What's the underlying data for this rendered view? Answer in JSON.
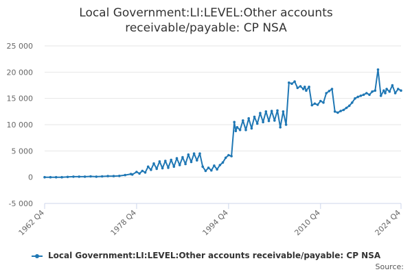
{
  "chart_data": {
    "type": "line",
    "title_line1": "Local Government:LI:LEVEL:Other accounts",
    "title_line2": "receivable/payable: CP NSA",
    "xlabel": "",
    "ylabel": "",
    "ylim": [
      -5000,
      25000
    ],
    "y_ticks": [
      {
        "value": 25000,
        "label": "25 000"
      },
      {
        "value": 20000,
        "label": "20 000"
      },
      {
        "value": 15000,
        "label": "15 000"
      },
      {
        "value": 10000,
        "label": "10 000"
      },
      {
        "value": 5000,
        "label": "5 000"
      },
      {
        "value": 0,
        "label": "0"
      },
      {
        "value": -5000,
        "label": "-5 000"
      }
    ],
    "x_ticks": [
      "1962 Q4",
      "1978 Q4",
      "1994 Q4",
      "2010 Q4",
      "2024 Q4"
    ],
    "grid": true,
    "legend_position": "bottom",
    "color": "#1f77b4",
    "series": [
      {
        "name": "Local Government:LI:LEVEL:Other accounts receivable/payable: CP NSA",
        "x": [
          "1962 Q4",
          "1963 Q4",
          "1964 Q4",
          "1965 Q4",
          "1966 Q4",
          "1967 Q4",
          "1968 Q4",
          "1969 Q4",
          "1970 Q4",
          "1971 Q4",
          "1972 Q4",
          "1973 Q4",
          "1974 Q4",
          "1975 Q4",
          "1976 Q4",
          "1977 Q4",
          "1978 Q1",
          "1978 Q4",
          "1979 Q2",
          "1979 Q4",
          "1980 Q2",
          "1980 Q4",
          "1981 Q2",
          "1981 Q4",
          "1982 Q2",
          "1982 Q4",
          "1983 Q2",
          "1983 Q4",
          "1984 Q2",
          "1984 Q4",
          "1985 Q2",
          "1985 Q4",
          "1986 Q2",
          "1986 Q4",
          "1987 Q2",
          "1987 Q4",
          "1988 Q2",
          "1988 Q4",
          "1989 Q2",
          "1989 Q4",
          "1990 Q2",
          "1990 Q4",
          "1991 Q2",
          "1991 Q4",
          "1992 Q2",
          "1992 Q4",
          "1993 Q2",
          "1993 Q4",
          "1994 Q2",
          "1994 Q4",
          "1995 Q2",
          "1995 Q4",
          "1996 Q1",
          "1996 Q2",
          "1996 Q4",
          "1997 Q2",
          "1997 Q4",
          "1998 Q2",
          "1998 Q4",
          "1999 Q2",
          "1999 Q4",
          "2000 Q2",
          "2000 Q4",
          "2001 Q2",
          "2001 Q4",
          "2002 Q2",
          "2002 Q4",
          "2003 Q2",
          "2003 Q4",
          "2004 Q2",
          "2004 Q4",
          "2005 Q2",
          "2005 Q4",
          "2006 Q2",
          "2006 Q4",
          "2007 Q2",
          "2007 Q4",
          "2008 Q1",
          "2008 Q2",
          "2008 Q4",
          "2009 Q2",
          "2009 Q4",
          "2010 Q2",
          "2010 Q4",
          "2011 Q2",
          "2011 Q4",
          "2012 Q2",
          "2012 Q4",
          "2013 Q2",
          "2013 Q4",
          "2014 Q2",
          "2014 Q4",
          "2015 Q2",
          "2015 Q4",
          "2016 Q2",
          "2016 Q4",
          "2017 Q2",
          "2017 Q4",
          "2018 Q2",
          "2018 Q4",
          "2019 Q2",
          "2019 Q4",
          "2020 Q2",
          "2020 Q4",
          "2021 Q2",
          "2021 Q4",
          "2022 Q1",
          "2022 Q2",
          "2022 Q4",
          "2023 Q2",
          "2023 Q4",
          "2024 Q2",
          "2024 Q4"
        ],
        "values": [
          0,
          0,
          0,
          0,
          50,
          100,
          100,
          100,
          150,
          100,
          150,
          200,
          200,
          250,
          400,
          600,
          500,
          1000,
          700,
          1200,
          900,
          2000,
          1400,
          2600,
          1600,
          3000,
          1700,
          3100,
          1800,
          3300,
          2000,
          3600,
          2300,
          3800,
          2500,
          4300,
          2900,
          4500,
          3200,
          4500,
          2000,
          1200,
          1800,
          1300,
          2200,
          1500,
          2300,
          2800,
          3700,
          4200,
          4000,
          10500,
          8800,
          9500,
          9000,
          10800,
          9000,
          11200,
          9300,
          11500,
          10200,
          12200,
          10500,
          12500,
          10700,
          12600,
          10800,
          12700,
          9500,
          12500,
          10000,
          18000,
          17800,
          18200,
          17000,
          17300,
          16800,
          17200,
          16500,
          17200,
          13700,
          14000,
          13800,
          14500,
          14200,
          16000,
          16400,
          16800,
          12500,
          12300,
          12600,
          12800,
          13200,
          13600,
          14200,
          15000,
          15300,
          15500,
          15700,
          16000,
          15700,
          16300,
          16500,
          20500,
          15500,
          16500,
          16000,
          16800,
          16300,
          17500,
          16000,
          16800,
          16500
        ]
      }
    ]
  },
  "legend": {
    "label": "Local Government:LI:LEVEL:Other accounts receivable/payable: CP NSA"
  },
  "credits": {
    "text": "Source:"
  }
}
